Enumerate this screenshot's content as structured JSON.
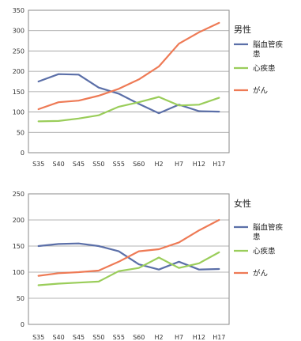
{
  "chart_data": [
    {
      "type": "line",
      "title": "男性",
      "categories": [
        "S35",
        "S40",
        "S45",
        "S50",
        "S55",
        "S60",
        "H2",
        "H7",
        "H12",
        "H17"
      ],
      "ylim": [
        0,
        350
      ],
      "yticks": [
        0,
        50,
        100,
        150,
        200,
        250,
        300,
        350
      ],
      "grid": true,
      "legend_placement": "right",
      "series": [
        {
          "name": "脳血管疾患",
          "color": "#5b6fa8",
          "values": [
            175,
            193,
            192,
            160,
            145,
            120,
            97,
            118,
            102,
            101
          ]
        },
        {
          "name": "心疾患",
          "color": "#9acd5a",
          "values": [
            77,
            78,
            84,
            92,
            113,
            124,
            137,
            116,
            118,
            135
          ]
        },
        {
          "name": "がん",
          "color": "#ee7a55",
          "values": [
            107,
            124,
            128,
            140,
            157,
            180,
            212,
            268,
            296,
            319
          ]
        }
      ]
    },
    {
      "type": "line",
      "title": "女性",
      "categories": [
        "S35",
        "S40",
        "S45",
        "S50",
        "S55",
        "S60",
        "H2",
        "H7",
        "H12",
        "H17"
      ],
      "ylim": [
        0,
        250
      ],
      "yticks": [
        0,
        50,
        100,
        150,
        200,
        250
      ],
      "grid": true,
      "legend_placement": "right",
      "series": [
        {
          "name": "脳血管疾患",
          "color": "#5b6fa8",
          "values": [
            150,
            154,
            155,
            150,
            140,
            115,
            105,
            120,
            105,
            106
          ]
        },
        {
          "name": "心疾患",
          "color": "#9acd5a",
          "values": [
            75,
            78,
            80,
            82,
            102,
            108,
            128,
            108,
            117,
            138
          ]
        },
        {
          "name": "がん",
          "color": "#ee7a55",
          "values": [
            93,
            98,
            100,
            103,
            120,
            140,
            144,
            157,
            180,
            200
          ]
        }
      ]
    }
  ]
}
